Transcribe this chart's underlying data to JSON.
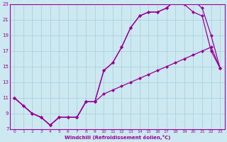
{
  "xlabel": "Windchill (Refroidissement éolien,°C)",
  "bg_color": "#cce8f0",
  "line_color": "#990099",
  "grid_color": "#aaccdd",
  "xlim": [
    -0.5,
    23.5
  ],
  "ylim": [
    7,
    23
  ],
  "xticks": [
    0,
    1,
    2,
    3,
    4,
    5,
    6,
    7,
    8,
    9,
    10,
    11,
    12,
    13,
    14,
    15,
    16,
    17,
    18,
    19,
    20,
    21,
    22,
    23
  ],
  "yticks": [
    7,
    9,
    11,
    13,
    15,
    17,
    19,
    21,
    23
  ],
  "curve1_x": [
    0,
    1,
    2,
    3,
    4,
    5,
    6,
    7,
    8,
    9,
    10,
    11,
    12,
    13,
    14,
    15,
    16,
    17,
    18,
    19,
    20,
    21,
    22,
    23
  ],
  "curve1_y": [
    11,
    10,
    9,
    8.5,
    7.5,
    8.5,
    8.5,
    8.5,
    10.5,
    10.5,
    14.5,
    15.5,
    17.5,
    20,
    21.5,
    22,
    22,
    22.5,
    23.5,
    23.5,
    23.5,
    22.5,
    19,
    14.8
  ],
  "curve2_x": [
    0,
    1,
    2,
    3,
    4,
    5,
    6,
    7,
    8,
    9,
    10,
    11,
    12,
    13,
    14,
    15,
    16,
    17,
    18,
    19,
    20,
    21,
    22,
    23
  ],
  "curve2_y": [
    11,
    10,
    9,
    8.5,
    7.5,
    8.5,
    8.5,
    8.5,
    10.5,
    10.5,
    14.5,
    15.5,
    17.5,
    20,
    21.5,
    22,
    22,
    22.5,
    23.5,
    23.0,
    22.0,
    21.5,
    17,
    14.8
  ],
  "curve3_x": [
    0,
    2,
    3,
    4,
    5,
    6,
    7,
    8,
    9,
    10,
    11,
    12,
    13,
    14,
    15,
    16,
    17,
    18,
    19,
    20,
    21,
    22,
    23
  ],
  "curve3_y": [
    11,
    9,
    8.5,
    7.5,
    8.5,
    8.5,
    8.5,
    10.5,
    10.5,
    11.5,
    12,
    12.5,
    13,
    13.5,
    14,
    14.5,
    15,
    15.5,
    16,
    16.5,
    17,
    17.5,
    14.8
  ]
}
